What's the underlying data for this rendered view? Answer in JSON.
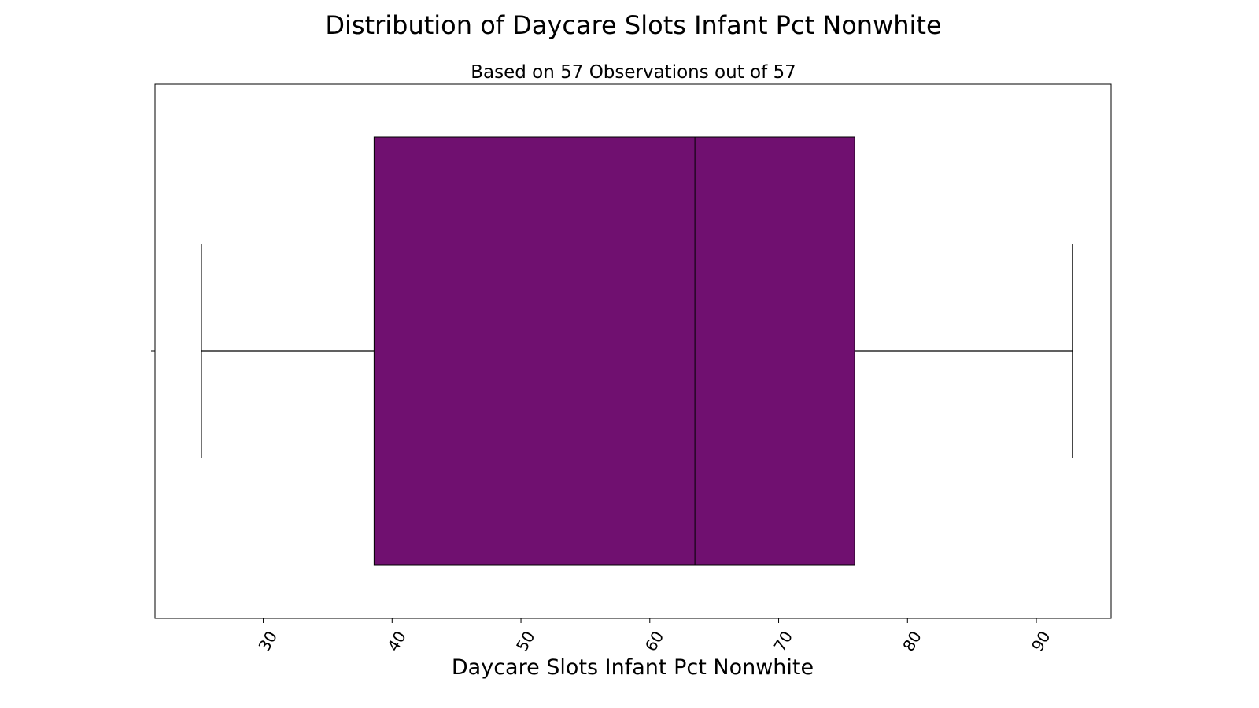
{
  "chart_data": {
    "type": "box",
    "title": "Distribution of Daycare Slots Infant Pct Nonwhite",
    "subtitle": "Based on 57 Observations out of 57",
    "xlabel": "Daycare Slots Infant Pct Nonwhite",
    "ylabel": "",
    "xlim": [
      21.6,
      95.8
    ],
    "xticks": [
      30,
      40,
      50,
      60,
      70,
      80,
      90
    ],
    "xtick_labels": [
      "30",
      "40",
      "50",
      "60",
      "70",
      "80",
      "90"
    ],
    "grid": false,
    "box": {
      "whisker_low": 25.2,
      "q1": 38.6,
      "median": 63.5,
      "q3": 75.9,
      "whisker_high": 92.8
    },
    "box_color": "#701070",
    "line_color": "#000000"
  }
}
